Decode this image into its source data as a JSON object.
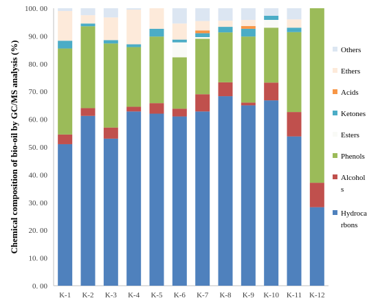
{
  "chart_data": {
    "type": "bar",
    "stacked": true,
    "ylabel": "Chemical composition of  bio-oil by GC/MS analysis (%)",
    "ylim": [
      0,
      100
    ],
    "yticks": [
      "0. 00",
      "10. 00",
      "20. 00",
      "30. 00",
      "40. 00",
      "50. 00",
      "60. 00",
      "70. 00",
      "80. 00",
      "90. 00",
      "100. 00"
    ],
    "categories": [
      "K-1",
      "K-2",
      "K-3",
      "K-4",
      "K-5",
      "K-6",
      "K-7",
      "K-8",
      "K-9",
      "K-10",
      "K-11",
      "K-12"
    ],
    "legend_position": "right",
    "series": [
      {
        "name": "Hydrocarbons",
        "legend_lines": [
          "Hydroca",
          "rbons"
        ],
        "color": "#4F81BD",
        "values": [
          51.0,
          61.2,
          53.0,
          62.8,
          62.0,
          61.0,
          62.8,
          68.3,
          65.0,
          66.8,
          53.8,
          28.3
        ]
      },
      {
        "name": "Alcohols",
        "legend_lines": [
          "Alcohol",
          "s"
        ],
        "color": "#C0504D",
        "values": [
          3.5,
          2.8,
          4.0,
          1.7,
          3.8,
          2.8,
          6.2,
          5.0,
          1.0,
          6.4,
          8.8,
          8.8
        ]
      },
      {
        "name": "Phenols",
        "legend_lines": [
          "Phenols"
        ],
        "color": "#9BBB59",
        "values": [
          31.0,
          29.5,
          30.3,
          21.5,
          24.0,
          18.5,
          20.0,
          18.0,
          23.8,
          19.8,
          28.8,
          62.9
        ]
      },
      {
        "name": "Esters",
        "legend_lines": [
          "Esters"
        ],
        "color": "#F9FAF6",
        "values": [
          0,
          0,
          0,
          0,
          0,
          5.4,
          0.6,
          0,
          0,
          2.8,
          0,
          0
        ]
      },
      {
        "name": "Ketones",
        "legend_lines": [
          "Ketones"
        ],
        "color": "#4BACC6",
        "values": [
          2.8,
          1.0,
          1.2,
          1.0,
          2.8,
          1.0,
          1.4,
          2.0,
          2.8,
          1.5,
          1.6,
          0
        ]
      },
      {
        "name": "Acids",
        "legend_lines": [
          "Acids"
        ],
        "color": "#F79646",
        "values": [
          0,
          0,
          0,
          0,
          0,
          0,
          1.0,
          0,
          1.0,
          0,
          0,
          0
        ]
      },
      {
        "name": "Ethers",
        "legend_lines": [
          "Ethers"
        ],
        "color": "#FDEADA",
        "values": [
          10.7,
          3.0,
          8.2,
          12.5,
          7.4,
          5.8,
          3.4,
          2.2,
          2.2,
          0,
          3.0,
          0
        ]
      },
      {
        "name": "Others",
        "legend_lines": [
          "Others"
        ],
        "color": "#DCE6F2",
        "values": [
          1.0,
          2.5,
          3.3,
          0.5,
          0,
          5.5,
          4.6,
          4.5,
          4.2,
          2.7,
          4.0,
          0
        ]
      }
    ]
  }
}
